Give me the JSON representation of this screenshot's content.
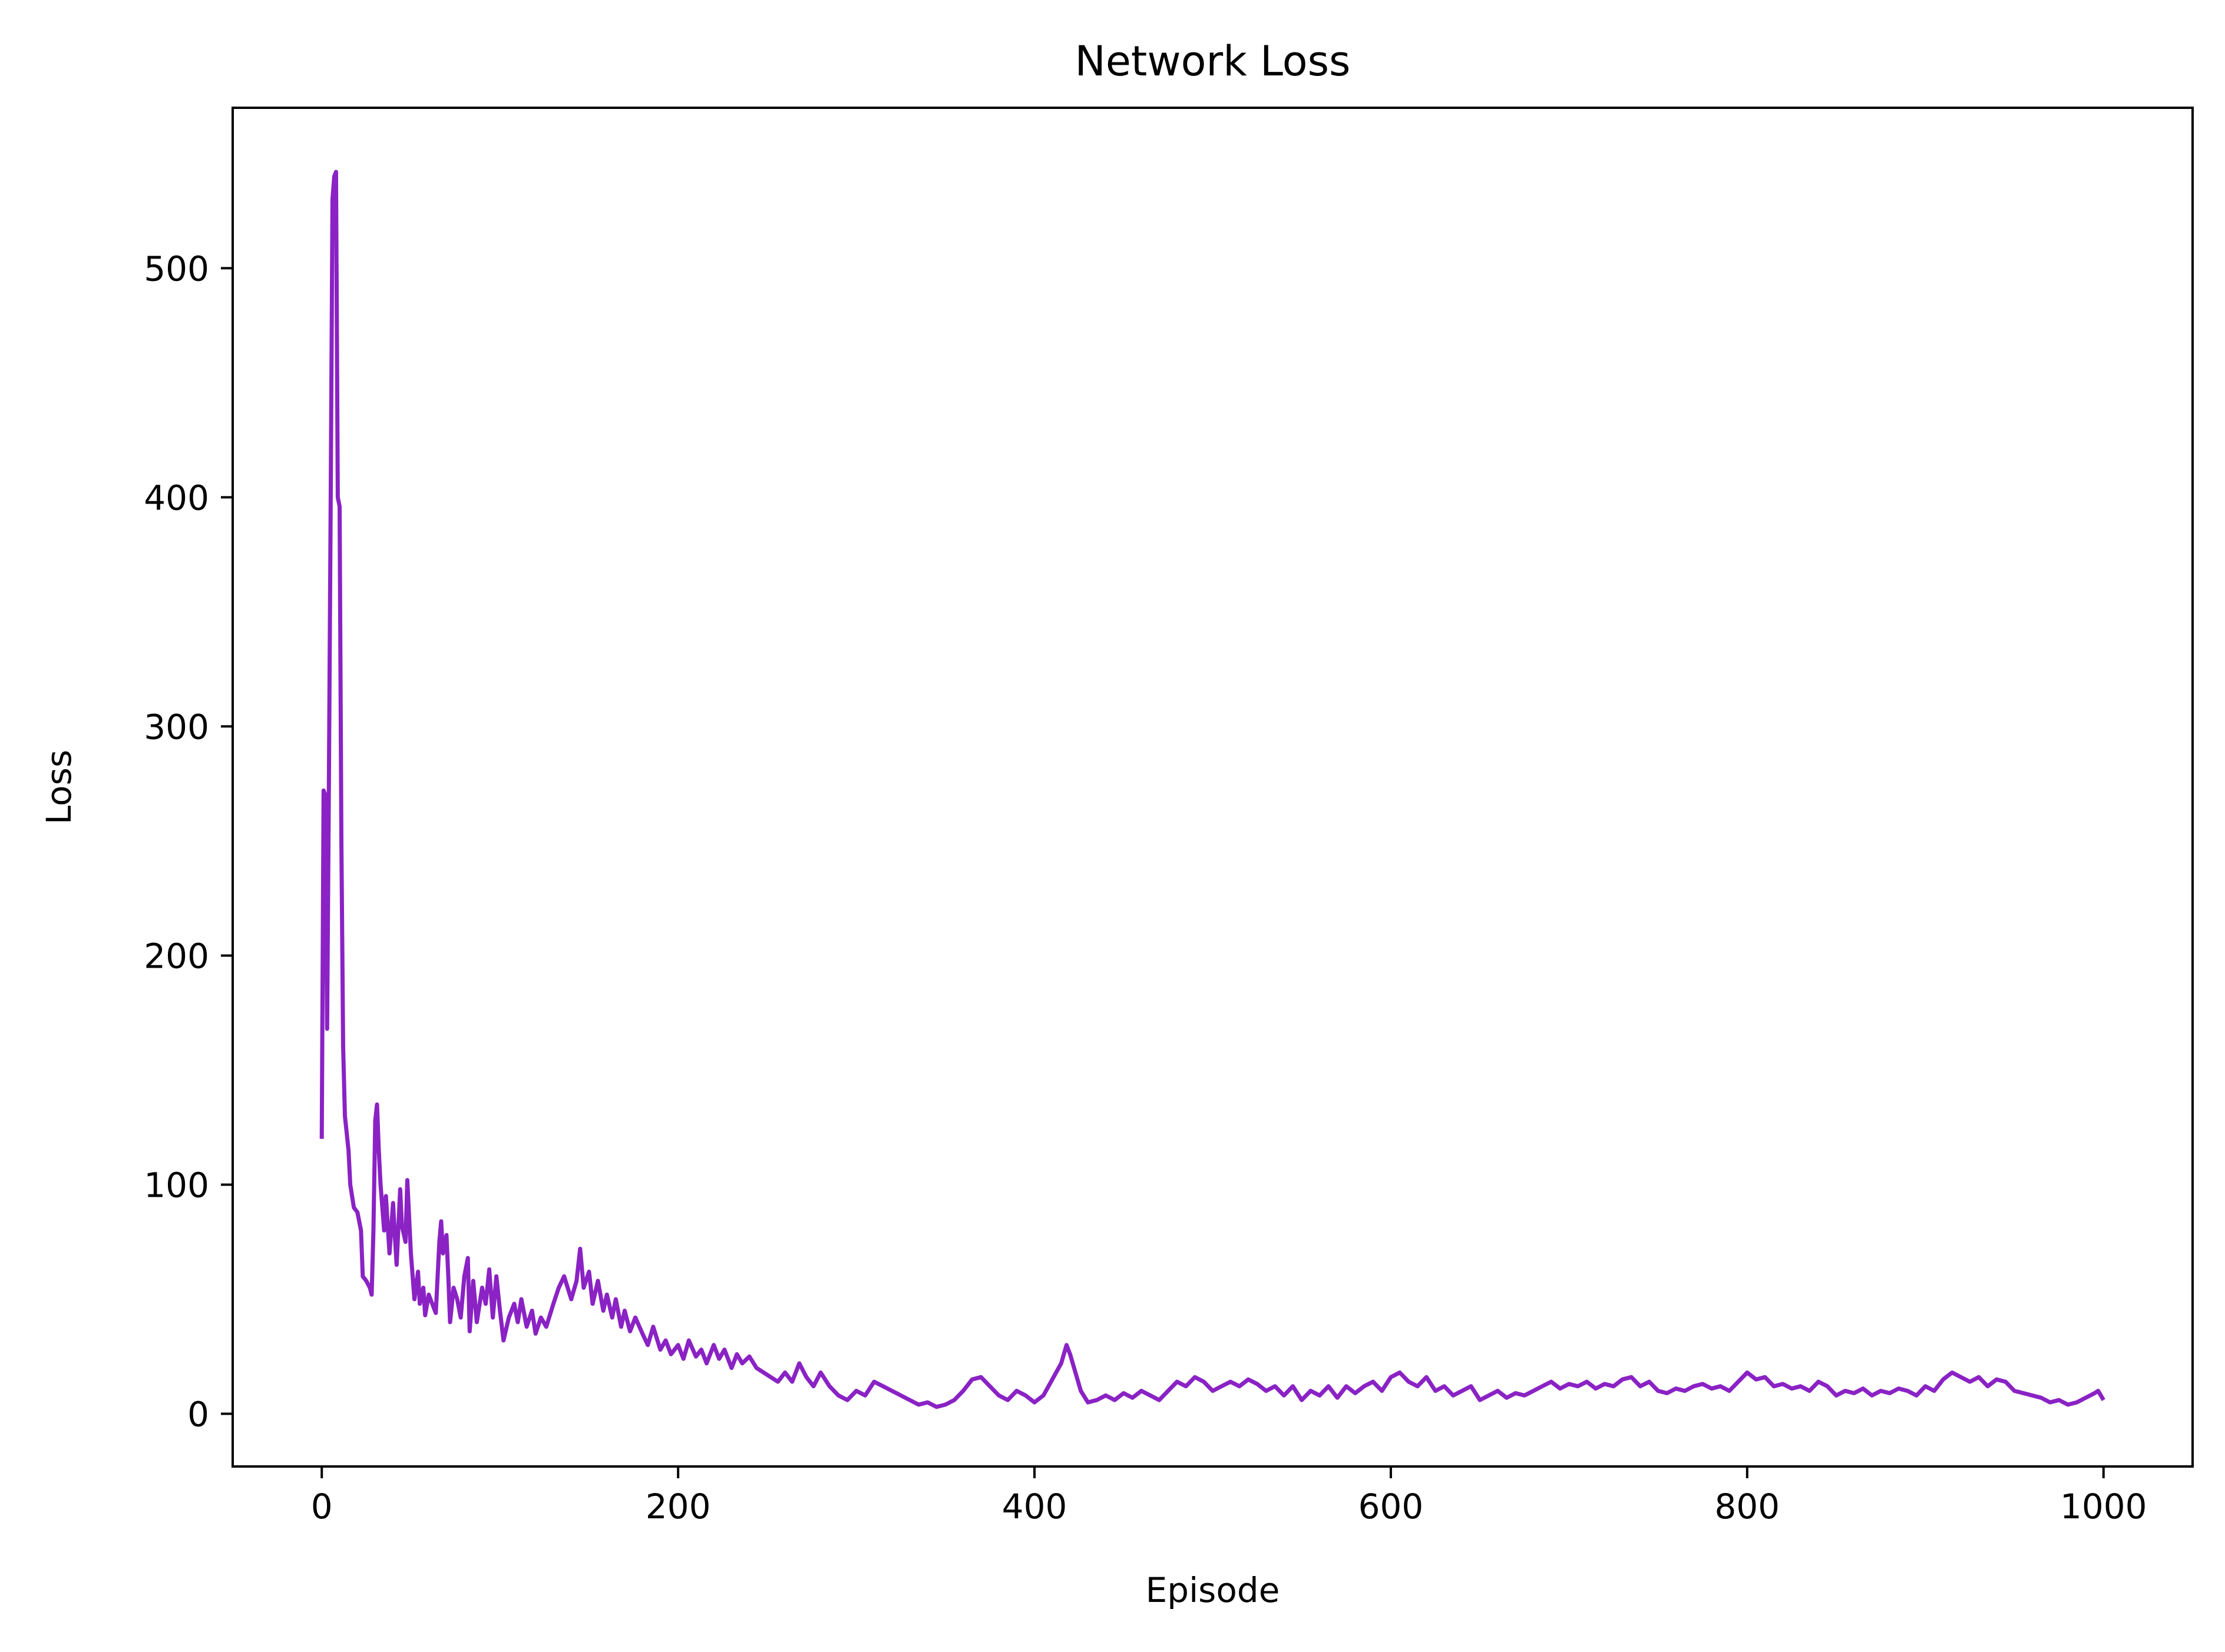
{
  "chart_data": {
    "type": "line",
    "title": "Network Loss",
    "xlabel": "Episode",
    "ylabel": "Loss",
    "xlim": [
      -50,
      1050
    ],
    "ylim": [
      -23,
      570
    ],
    "xticks": [
      0,
      200,
      400,
      600,
      800,
      1000
    ],
    "yticks": [
      0,
      100,
      200,
      300,
      400,
      500
    ],
    "grid": false,
    "legend": "none",
    "colors": {
      "line": "#8A22C4",
      "frame": "#000000"
    },
    "series": [
      {
        "points": [
          [
            0,
            120
          ],
          [
            1,
            272
          ],
          [
            2,
            270
          ],
          [
            3,
            168
          ],
          [
            4,
            275
          ],
          [
            5,
            400
          ],
          [
            6,
            530
          ],
          [
            7,
            540
          ],
          [
            8,
            542
          ],
          [
            9,
            400
          ],
          [
            10,
            396
          ],
          [
            11,
            250
          ],
          [
            12,
            160
          ],
          [
            13,
            130
          ],
          [
            15,
            115
          ],
          [
            16,
            100
          ],
          [
            18,
            90
          ],
          [
            20,
            88
          ],
          [
            22,
            80
          ],
          [
            23,
            60
          ],
          [
            25,
            58
          ],
          [
            27,
            55
          ],
          [
            28,
            52
          ],
          [
            29,
            80
          ],
          [
            30,
            128
          ],
          [
            31,
            135
          ],
          [
            32,
            115
          ],
          [
            33,
            100
          ],
          [
            35,
            80
          ],
          [
            36,
            95
          ],
          [
            38,
            70
          ],
          [
            40,
            92
          ],
          [
            41,
            78
          ],
          [
            42,
            65
          ],
          [
            44,
            98
          ],
          [
            45,
            82
          ],
          [
            47,
            75
          ],
          [
            48,
            102
          ],
          [
            50,
            70
          ],
          [
            52,
            50
          ],
          [
            54,
            62
          ],
          [
            55,
            48
          ],
          [
            57,
            55
          ],
          [
            58,
            43
          ],
          [
            60,
            52
          ],
          [
            62,
            48
          ],
          [
            64,
            44
          ],
          [
            66,
            75
          ],
          [
            67,
            84
          ],
          [
            68,
            70
          ],
          [
            70,
            78
          ],
          [
            71,
            60
          ],
          [
            72,
            40
          ],
          [
            74,
            55
          ],
          [
            76,
            50
          ],
          [
            78,
            42
          ],
          [
            80,
            60
          ],
          [
            82,
            68
          ],
          [
            83,
            36
          ],
          [
            85,
            58
          ],
          [
            87,
            40
          ],
          [
            90,
            55
          ],
          [
            92,
            48
          ],
          [
            94,
            63
          ],
          [
            96,
            42
          ],
          [
            98,
            60
          ],
          [
            100,
            45
          ],
          [
            102,
            32
          ],
          [
            105,
            42
          ],
          [
            108,
            48
          ],
          [
            110,
            40
          ],
          [
            112,
            50
          ],
          [
            115,
            38
          ],
          [
            118,
            45
          ],
          [
            120,
            35
          ],
          [
            123,
            42
          ],
          [
            126,
            38
          ],
          [
            130,
            48
          ],
          [
            133,
            55
          ],
          [
            136,
            60
          ],
          [
            140,
            50
          ],
          [
            143,
            58
          ],
          [
            145,
            72
          ],
          [
            147,
            55
          ],
          [
            150,
            62
          ],
          [
            152,
            48
          ],
          [
            155,
            58
          ],
          [
            158,
            45
          ],
          [
            160,
            52
          ],
          [
            163,
            42
          ],
          [
            165,
            50
          ],
          [
            168,
            38
          ],
          [
            170,
            45
          ],
          [
            173,
            36
          ],
          [
            176,
            42
          ],
          [
            180,
            35
          ],
          [
            183,
            30
          ],
          [
            186,
            38
          ],
          [
            190,
            28
          ],
          [
            193,
            32
          ],
          [
            196,
            26
          ],
          [
            200,
            30
          ],
          [
            203,
            24
          ],
          [
            206,
            32
          ],
          [
            210,
            25
          ],
          [
            213,
            28
          ],
          [
            216,
            22
          ],
          [
            220,
            30
          ],
          [
            223,
            24
          ],
          [
            226,
            28
          ],
          [
            230,
            20
          ],
          [
            233,
            26
          ],
          [
            236,
            22
          ],
          [
            240,
            25
          ],
          [
            244,
            20
          ],
          [
            248,
            18
          ],
          [
            252,
            16
          ],
          [
            256,
            14
          ],
          [
            260,
            18
          ],
          [
            264,
            14
          ],
          [
            268,
            22
          ],
          [
            272,
            16
          ],
          [
            276,
            12
          ],
          [
            280,
            18
          ],
          [
            285,
            12
          ],
          [
            290,
            8
          ],
          [
            295,
            6
          ],
          [
            300,
            10
          ],
          [
            305,
            8
          ],
          [
            310,
            14
          ],
          [
            315,
            12
          ],
          [
            320,
            10
          ],
          [
            325,
            8
          ],
          [
            330,
            6
          ],
          [
            335,
            4
          ],
          [
            340,
            5
          ],
          [
            345,
            3
          ],
          [
            350,
            4
          ],
          [
            355,
            6
          ],
          [
            360,
            10
          ],
          [
            365,
            15
          ],
          [
            370,
            16
          ],
          [
            375,
            12
          ],
          [
            380,
            8
          ],
          [
            385,
            6
          ],
          [
            390,
            10
          ],
          [
            395,
            8
          ],
          [
            400,
            5
          ],
          [
            405,
            8
          ],
          [
            410,
            15
          ],
          [
            415,
            22
          ],
          [
            418,
            30
          ],
          [
            420,
            26
          ],
          [
            423,
            18
          ],
          [
            426,
            10
          ],
          [
            430,
            5
          ],
          [
            435,
            6
          ],
          [
            440,
            8
          ],
          [
            445,
            6
          ],
          [
            450,
            9
          ],
          [
            455,
            7
          ],
          [
            460,
            10
          ],
          [
            465,
            8
          ],
          [
            470,
            6
          ],
          [
            475,
            10
          ],
          [
            480,
            14
          ],
          [
            485,
            12
          ],
          [
            490,
            16
          ],
          [
            495,
            14
          ],
          [
            500,
            10
          ],
          [
            505,
            12
          ],
          [
            510,
            14
          ],
          [
            515,
            12
          ],
          [
            520,
            15
          ],
          [
            525,
            13
          ],
          [
            530,
            10
          ],
          [
            535,
            12
          ],
          [
            540,
            8
          ],
          [
            545,
            12
          ],
          [
            550,
            6
          ],
          [
            555,
            10
          ],
          [
            560,
            8
          ],
          [
            565,
            12
          ],
          [
            570,
            7
          ],
          [
            575,
            12
          ],
          [
            580,
            9
          ],
          [
            585,
            12
          ],
          [
            590,
            14
          ],
          [
            595,
            10
          ],
          [
            600,
            16
          ],
          [
            605,
            18
          ],
          [
            610,
            14
          ],
          [
            615,
            12
          ],
          [
            620,
            16
          ],
          [
            625,
            10
          ],
          [
            630,
            12
          ],
          [
            635,
            8
          ],
          [
            640,
            10
          ],
          [
            645,
            12
          ],
          [
            650,
            6
          ],
          [
            655,
            8
          ],
          [
            660,
            10
          ],
          [
            665,
            7
          ],
          [
            670,
            9
          ],
          [
            675,
            8
          ],
          [
            680,
            10
          ],
          [
            685,
            12
          ],
          [
            690,
            14
          ],
          [
            695,
            11
          ],
          [
            700,
            13
          ],
          [
            705,
            12
          ],
          [
            710,
            14
          ],
          [
            715,
            11
          ],
          [
            720,
            13
          ],
          [
            725,
            12
          ],
          [
            730,
            15
          ],
          [
            735,
            16
          ],
          [
            740,
            12
          ],
          [
            745,
            14
          ],
          [
            750,
            10
          ],
          [
            755,
            9
          ],
          [
            760,
            11
          ],
          [
            765,
            10
          ],
          [
            770,
            12
          ],
          [
            775,
            13
          ],
          [
            780,
            11
          ],
          [
            785,
            12
          ],
          [
            790,
            10
          ],
          [
            795,
            14
          ],
          [
            800,
            18
          ],
          [
            805,
            15
          ],
          [
            810,
            16
          ],
          [
            815,
            12
          ],
          [
            820,
            13
          ],
          [
            825,
            11
          ],
          [
            830,
            12
          ],
          [
            835,
            10
          ],
          [
            840,
            14
          ],
          [
            845,
            12
          ],
          [
            850,
            8
          ],
          [
            855,
            10
          ],
          [
            860,
            9
          ],
          [
            865,
            11
          ],
          [
            870,
            8
          ],
          [
            875,
            10
          ],
          [
            880,
            9
          ],
          [
            885,
            11
          ],
          [
            890,
            10
          ],
          [
            895,
            8
          ],
          [
            900,
            12
          ],
          [
            905,
            10
          ],
          [
            910,
            15
          ],
          [
            915,
            18
          ],
          [
            920,
            16
          ],
          [
            925,
            14
          ],
          [
            930,
            16
          ],
          [
            935,
            12
          ],
          [
            940,
            15
          ],
          [
            945,
            14
          ],
          [
            950,
            10
          ],
          [
            955,
            9
          ],
          [
            960,
            8
          ],
          [
            965,
            7
          ],
          [
            970,
            5
          ],
          [
            975,
            6
          ],
          [
            980,
            4
          ],
          [
            985,
            5
          ],
          [
            990,
            7
          ],
          [
            995,
            9
          ],
          [
            997,
            10
          ],
          [
            1000,
            6
          ]
        ]
      }
    ]
  }
}
